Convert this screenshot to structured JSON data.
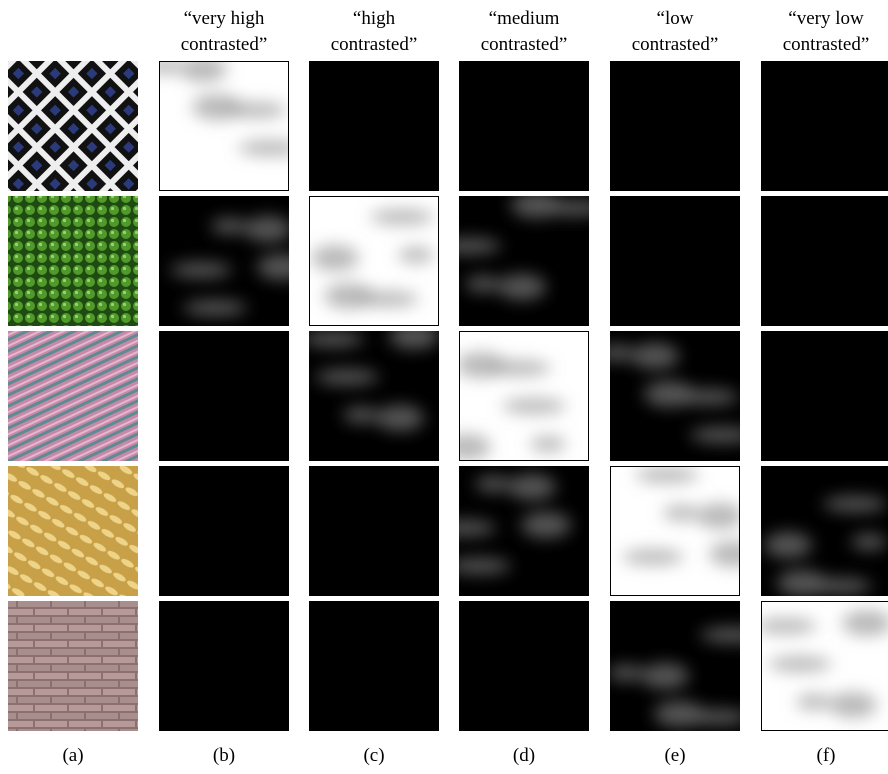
{
  "headers": [
    [
      "“very high",
      "contrasted”"
    ],
    [
      "“high",
      "contrasted”"
    ],
    [
      "“medium",
      "contrasted”"
    ],
    [
      "“low",
      "contrasted”"
    ],
    [
      "“very low",
      "contrasted”"
    ]
  ],
  "labels": [
    "(a)",
    "(b)",
    "(c)",
    "(d)",
    "(e)",
    "(f)"
  ]
}
